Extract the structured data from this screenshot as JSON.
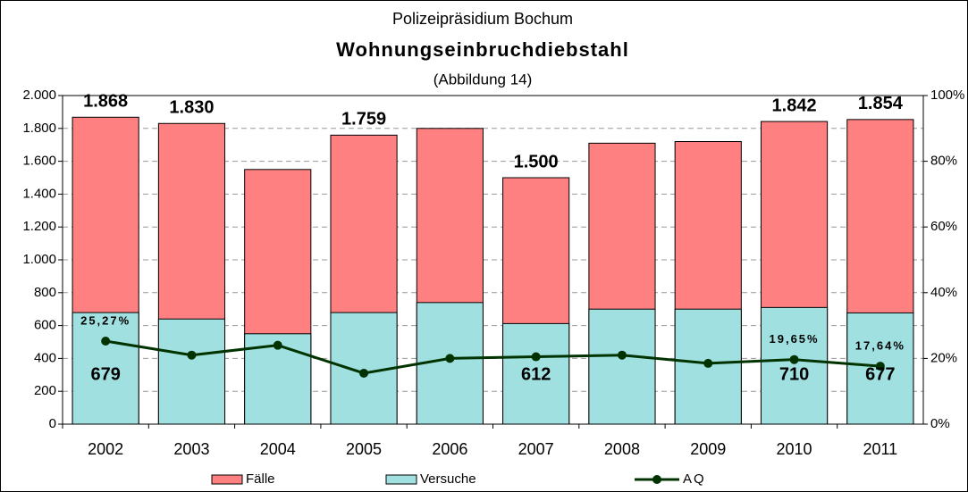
{
  "chart_data": {
    "type": "bar",
    "header": "Polizeipräsidium Bochum",
    "title": "Wohnungseinbruchdiebstahl",
    "subtitle": "(Abbildung 14)",
    "categories": [
      "2002",
      "2003",
      "2004",
      "2005",
      "2006",
      "2007",
      "2008",
      "2009",
      "2010",
      "2011"
    ],
    "series": [
      {
        "name": "Fälle",
        "color": "#ff8080",
        "values": [
          1868,
          1830,
          1550,
          1759,
          1800,
          1500,
          1710,
          1720,
          1842,
          1854
        ],
        "value_labels": [
          "1.868",
          "1.830",
          null,
          "1.759",
          null,
          "1.500",
          null,
          null,
          "1.842",
          "1.854"
        ]
      },
      {
        "name": "Versuche",
        "color": "#a0e0e0",
        "values": [
          679,
          640,
          550,
          679,
          740,
          612,
          700,
          700,
          710,
          677
        ],
        "value_labels": [
          "679",
          null,
          null,
          null,
          null,
          "612",
          null,
          null,
          "710",
          "677"
        ]
      },
      {
        "name": "AQ",
        "color": "#003300",
        "type": "line",
        "axis": "y2",
        "values": [
          25.27,
          21,
          24,
          15.5,
          20,
          20.5,
          21,
          18.5,
          19.65,
          17.64
        ],
        "value_labels": [
          "25,27%",
          null,
          null,
          null,
          null,
          null,
          null,
          null,
          "19,65%",
          "17,64%"
        ]
      }
    ],
    "ylim": [
      0,
      2000
    ],
    "yticks": [
      0,
      200,
      400,
      600,
      800,
      {
        "value": 1000,
        "label": "1.000"
      },
      {
        "value": 1200,
        "label": "1.200"
      },
      {
        "value": 1400,
        "label": "1.400"
      },
      {
        "value": 1600,
        "label": "1.600"
      },
      {
        "value": 1800,
        "label": "1.800"
      },
      {
        "value": 2000,
        "label": "2.000"
      }
    ],
    "y2lim": [
      0,
      100
    ],
    "y2ticks": [
      {
        "value": 0,
        "label": "0%"
      },
      {
        "value": 20,
        "label": "20%"
      },
      {
        "value": 40,
        "label": "40%"
      },
      {
        "value": 60,
        "label": "60%"
      },
      {
        "value": 80,
        "label": "80%"
      },
      {
        "value": 100,
        "label": "100%"
      }
    ],
    "grid": true,
    "legend": "bottom"
  }
}
